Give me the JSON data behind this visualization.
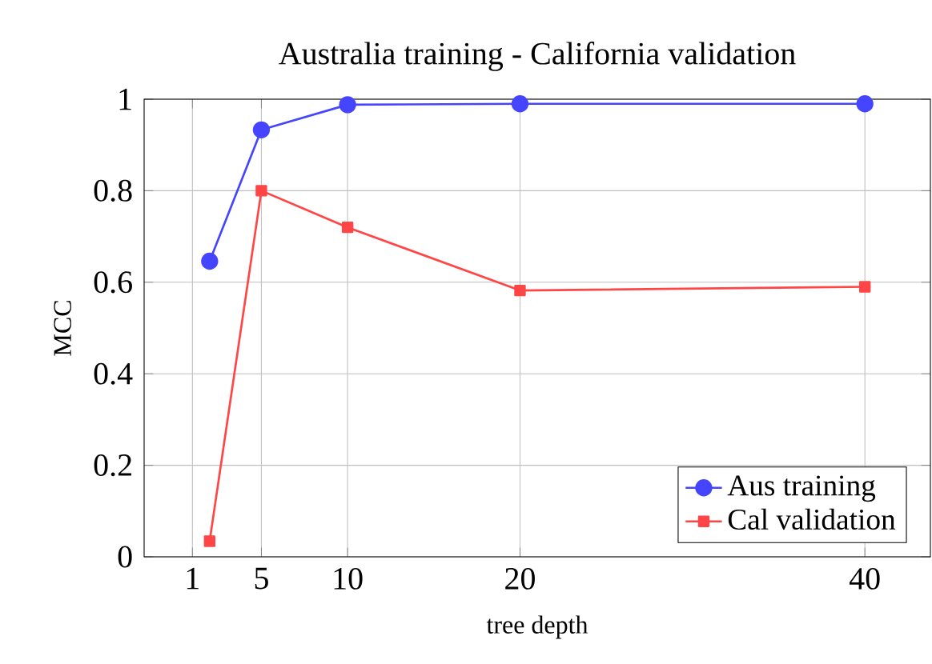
{
  "chart_data": {
    "type": "line",
    "title": "Australia training - California validation",
    "xlabel": "tree depth",
    "ylabel": "MCC",
    "x": [
      2,
      5,
      10,
      20,
      40
    ],
    "series": [
      {
        "name": "Aus training",
        "color": "#4545ff",
        "marker": "circle",
        "values": [
          0.646,
          0.933,
          0.988,
          0.99,
          0.99
        ]
      },
      {
        "name": "Cal validation",
        "color": "#ff4545",
        "marker": "square",
        "values": [
          0.034,
          0.8,
          0.72,
          0.582,
          0.59
        ]
      }
    ],
    "xlim": [
      -1.8,
      43.8
    ],
    "ylim": [
      0,
      1
    ],
    "xticks": [
      1,
      5,
      10,
      20,
      40
    ],
    "yticks": [
      0,
      0.2,
      0.4,
      0.6,
      0.8,
      1
    ],
    "grid": true,
    "legend": "bottom right",
    "line_style": "solid"
  }
}
